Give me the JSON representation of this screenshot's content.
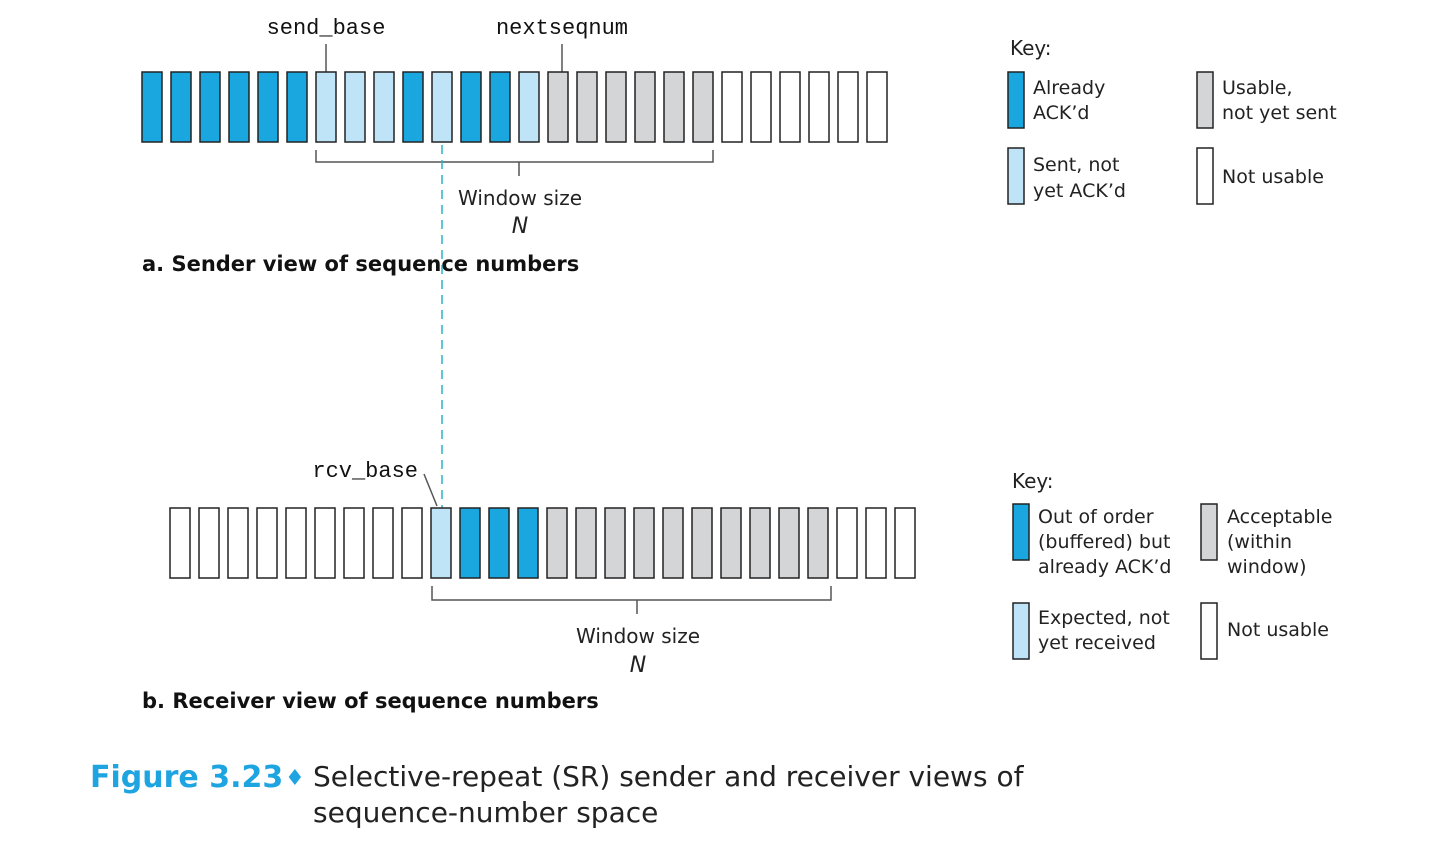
{
  "colors": {
    "acked": "#1aa7df",
    "sent": "#bfe4f7",
    "usable": "#d4d5d7",
    "not_usable": "#ffffff",
    "dashed": "#2ab3c9",
    "caption_accent": "#1ea4e0"
  },
  "sender": {
    "pointer_send_base": "send_base",
    "pointer_nextseqnum": "nextseqnum",
    "window_label": "Window size",
    "window_var": "N",
    "heading": "a. Sender view of sequence numbers",
    "cells": [
      "acked",
      "acked",
      "acked",
      "acked",
      "acked",
      "acked",
      "sent",
      "sent",
      "sent",
      "acked",
      "sent",
      "acked",
      "acked",
      "sent",
      "usable",
      "usable",
      "usable",
      "usable",
      "usable",
      "usable",
      "not_usable",
      "not_usable",
      "not_usable",
      "not_usable",
      "not_usable",
      "not_usable"
    ],
    "key": {
      "title": "Key:",
      "items": [
        {
          "state": "acked",
          "lines": [
            "Already",
            "ACK’d"
          ]
        },
        {
          "state": "usable",
          "lines": [
            "Usable,",
            "not yet sent"
          ]
        },
        {
          "state": "sent",
          "lines": [
            "Sent, not",
            "yet ACK’d"
          ]
        },
        {
          "state": "not_usable",
          "lines": [
            "Not usable"
          ]
        }
      ]
    }
  },
  "receiver": {
    "pointer_rcv_base": "rcv_base",
    "window_label": "Window size",
    "window_var": "N",
    "heading": "b. Receiver view of sequence numbers",
    "cells": [
      "not_usable",
      "not_usable",
      "not_usable",
      "not_usable",
      "not_usable",
      "not_usable",
      "not_usable",
      "not_usable",
      "not_usable",
      "sent",
      "acked",
      "acked",
      "acked",
      "usable",
      "usable",
      "usable",
      "usable",
      "usable",
      "usable",
      "usable",
      "usable",
      "usable",
      "usable",
      "not_usable",
      "not_usable",
      "not_usable"
    ],
    "key": {
      "title": "Key:",
      "items": [
        {
          "state": "acked",
          "lines": [
            "Out of order",
            "(buffered) but",
            "already ACK’d"
          ]
        },
        {
          "state": "usable",
          "lines": [
            "Acceptable",
            "(within",
            "window)"
          ]
        },
        {
          "state": "sent",
          "lines": [
            "Expected, not",
            "yet received"
          ]
        },
        {
          "state": "not_usable",
          "lines": [
            "Not usable"
          ]
        }
      ]
    }
  },
  "caption": {
    "number": "Figure 3.23",
    "diamond": "♦",
    "line1": "Selective-repeat (SR) sender and receiver views of",
    "line2": "sequence-number space"
  }
}
